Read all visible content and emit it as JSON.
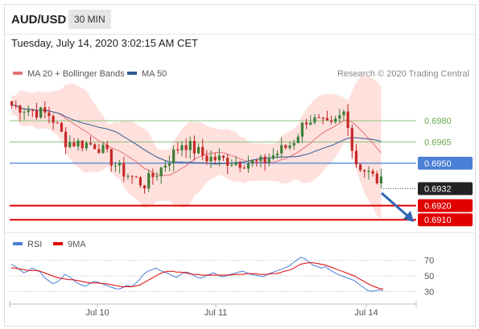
{
  "header": {
    "symbol": "AUD/USD",
    "timeframe": "30 MIN",
    "datetime": "Tuesday, July 14, 2020 3:02:15 AM CET"
  },
  "legend": {
    "ma20": "MA 20 + Bollinger Bands",
    "ma50": "MA 50",
    "credit": "Research © 2020 Trading Central"
  },
  "rsi_legend": {
    "rsi": "RSI",
    "ma9": "9MA"
  },
  "colors": {
    "bull": "#3e7d36",
    "bear": "#c62828",
    "ma20": "#e57373",
    "band": "#fdd5d2",
    "ma50": "#2e5b8f",
    "level_green": "#8cc27a",
    "level_blue": "#4a7fd6",
    "level_red": "#e00000",
    "arrow": "#3066b3",
    "rsi": "#4a7fd6"
  },
  "chart_data": [
    {
      "type": "candlestick",
      "title": "AUD/USD 30 MIN",
      "x_ticks": [
        "Jul 10",
        "Jul 11",
        "Jul 14"
      ],
      "ylim": [
        0.6905,
        0.7
      ],
      "current_price": 0.6932,
      "levels": [
        {
          "value": 0.698,
          "label": "0.6980",
          "role": "resistance"
        },
        {
          "value": 0.6965,
          "label": "0.6965",
          "role": "resistance"
        },
        {
          "value": 0.695,
          "label": "0.6950",
          "role": "pivot"
        },
        {
          "value": 0.692,
          "label": "0.6920",
          "role": "support"
        },
        {
          "value": 0.691,
          "label": "0.6910",
          "role": "support"
        }
      ],
      "forecast_direction": "down",
      "series": [
        {
          "name": "MA 20 + Bollinger Bands",
          "indicator": "moving average with bands"
        },
        {
          "name": "MA 50",
          "indicator": "moving average"
        }
      ]
    },
    {
      "type": "line",
      "title": "RSI",
      "y_ticks": [
        "70",
        "50",
        "30"
      ],
      "ylim": [
        20,
        80
      ],
      "series": [
        {
          "name": "RSI",
          "values": [
            65,
            62,
            58,
            54,
            56,
            60,
            58,
            55,
            48,
            44,
            40,
            42,
            46,
            52,
            49,
            45,
            41,
            38,
            37,
            40,
            43,
            42,
            40,
            38,
            36,
            34,
            33,
            35,
            38,
            36,
            40,
            45,
            52,
            56,
            58,
            60,
            57,
            55,
            53,
            50,
            48,
            52,
            55,
            54,
            51,
            48,
            47,
            50,
            52,
            54,
            51,
            49,
            50,
            52,
            53,
            55,
            56,
            54,
            52,
            51,
            50,
            49,
            52,
            54,
            56,
            58,
            60,
            62,
            66,
            70,
            74,
            72,
            68,
            64,
            62,
            60,
            62,
            58,
            55,
            52,
            50,
            48,
            46,
            44,
            40,
            36,
            32,
            30,
            31,
            32,
            31
          ]
        },
        {
          "name": "9MA",
          "values": [
            60,
            60,
            59,
            58,
            57,
            57,
            57,
            56,
            54,
            52,
            50,
            48,
            47,
            46,
            45,
            45,
            44,
            43,
            42,
            41,
            41,
            41,
            40,
            40,
            39,
            38,
            37,
            36,
            36,
            36,
            37,
            38,
            41,
            44,
            47,
            50,
            53,
            55,
            56,
            56,
            55,
            55,
            54,
            53,
            52,
            52,
            51,
            51,
            51,
            51,
            51,
            51,
            51,
            51,
            52,
            52,
            52,
            53,
            53,
            53,
            52,
            52,
            52,
            53,
            53,
            54,
            56,
            57,
            59,
            62,
            65,
            66,
            67,
            67,
            66,
            65,
            64,
            62,
            60,
            58,
            56,
            54,
            52,
            50,
            47,
            44,
            41,
            38,
            36,
            34,
            33
          ]
        }
      ]
    }
  ]
}
